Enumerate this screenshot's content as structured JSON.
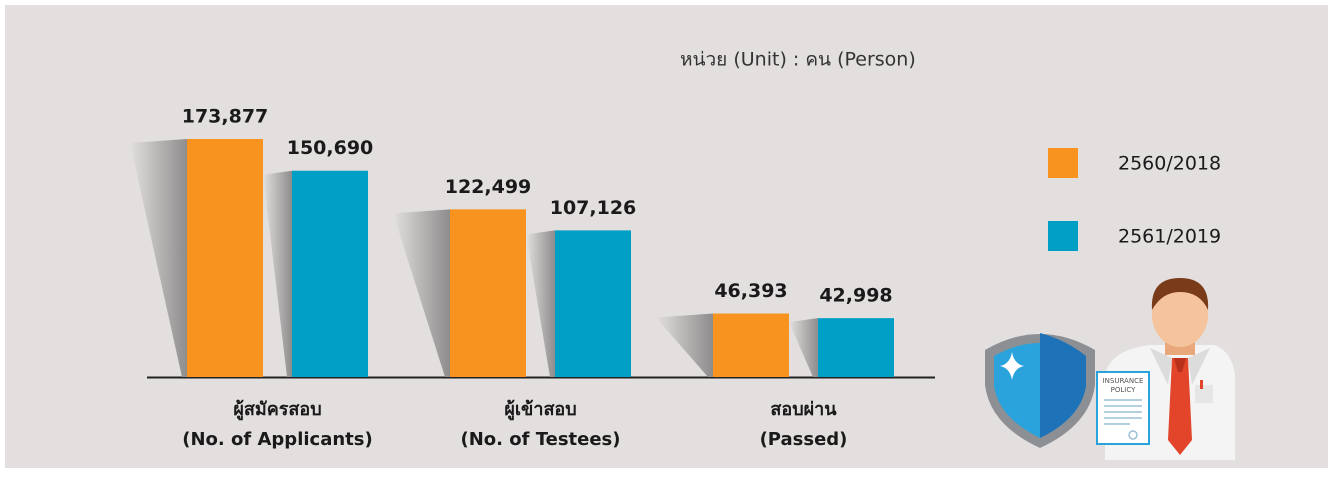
{
  "chart_data": {
    "type": "bar",
    "unit_note": "หน่วย (Unit) : คน (Person)",
    "categories": [
      [
        "ผู้สมัครสอบ",
        "(No. of Applicants)"
      ],
      [
        "ผู้เข้าสอบ",
        "(No. of Testees)"
      ],
      [
        "สอบผ่าน",
        "(Passed)"
      ]
    ],
    "series": [
      {
        "name": "2560/2018",
        "color": "#f7931e",
        "values": [
          173877,
          122499,
          46393
        ],
        "value_labels": [
          "173,877",
          "122,499",
          "46,393"
        ]
      },
      {
        "name": "2561/2019",
        "color": "#00a0c6",
        "values": [
          150690,
          107126,
          42998
        ],
        "value_labels": [
          "150,690",
          "107,126",
          "42,998"
        ]
      }
    ],
    "legend": "right"
  },
  "illustration": {
    "document_title": [
      "INSURANCE",
      "POLICY"
    ]
  }
}
